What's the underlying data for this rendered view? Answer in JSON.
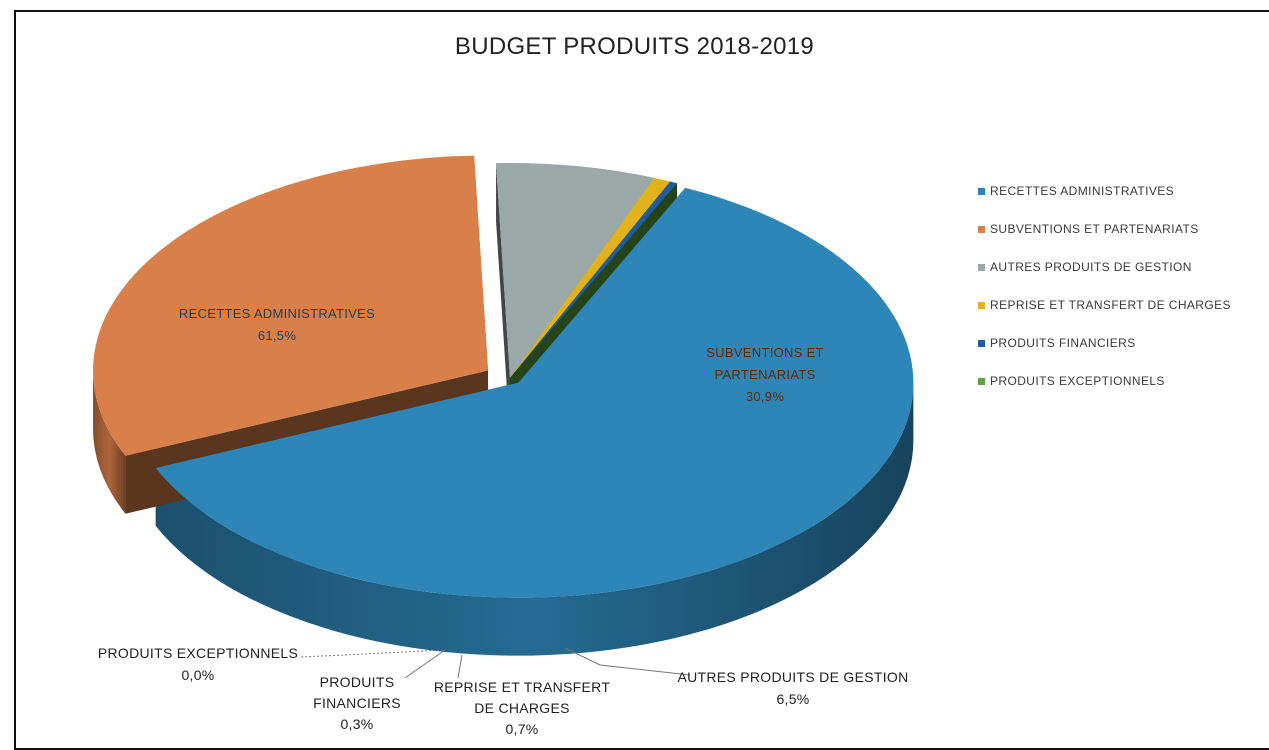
{
  "chart_data": {
    "type": "pie",
    "title": "BUDGET PRODUITS 2018-2019",
    "legend_position": "right",
    "slices": [
      {
        "name": "RECETTES ADMINISTRATIVES",
        "value": 61.5,
        "value_label": "61,5%",
        "color": "#2e86b8",
        "label_lines": [
          "RECETTES ADMINISTRATIVES",
          "61,5%"
        ]
      },
      {
        "name": "SUBVENTIONS ET PARTENARIATS",
        "value": 30.9,
        "value_label": "30,9%",
        "color": "#d9804a",
        "label_lines": [
          "SUBVENTIONS ET",
          "PARTENARIATS",
          "30,9%"
        ]
      },
      {
        "name": "AUTRES PRODUITS DE GESTION",
        "value": 6.5,
        "value_label": "6,5%",
        "color": "#9aa8a8",
        "label_lines": [
          "AUTRES PRODUITS DE GESTION",
          "6,5%"
        ]
      },
      {
        "name": "REPRISE ET TRANSFERT DE CHARGES",
        "value": 0.7,
        "value_label": "0,7%",
        "color": "#e2b21c",
        "label_lines": [
          "REPRISE ET TRANSFERT",
          "DE CHARGES",
          "0,7%"
        ]
      },
      {
        "name": "PRODUITS FINANCIERS",
        "value": 0.3,
        "value_label": "0,3%",
        "color": "#1f5da0",
        "label_lines": [
          "PRODUITS",
          "FINANCIERS",
          "0,3%"
        ]
      },
      {
        "name": "PRODUITS EXCEPTIONNELS",
        "value": 0.0,
        "value_label": "0,0%",
        "color": "#5aa33e",
        "label_lines": [
          "PRODUITS EXCEPTIONNELS",
          "0,0%"
        ]
      }
    ]
  }
}
